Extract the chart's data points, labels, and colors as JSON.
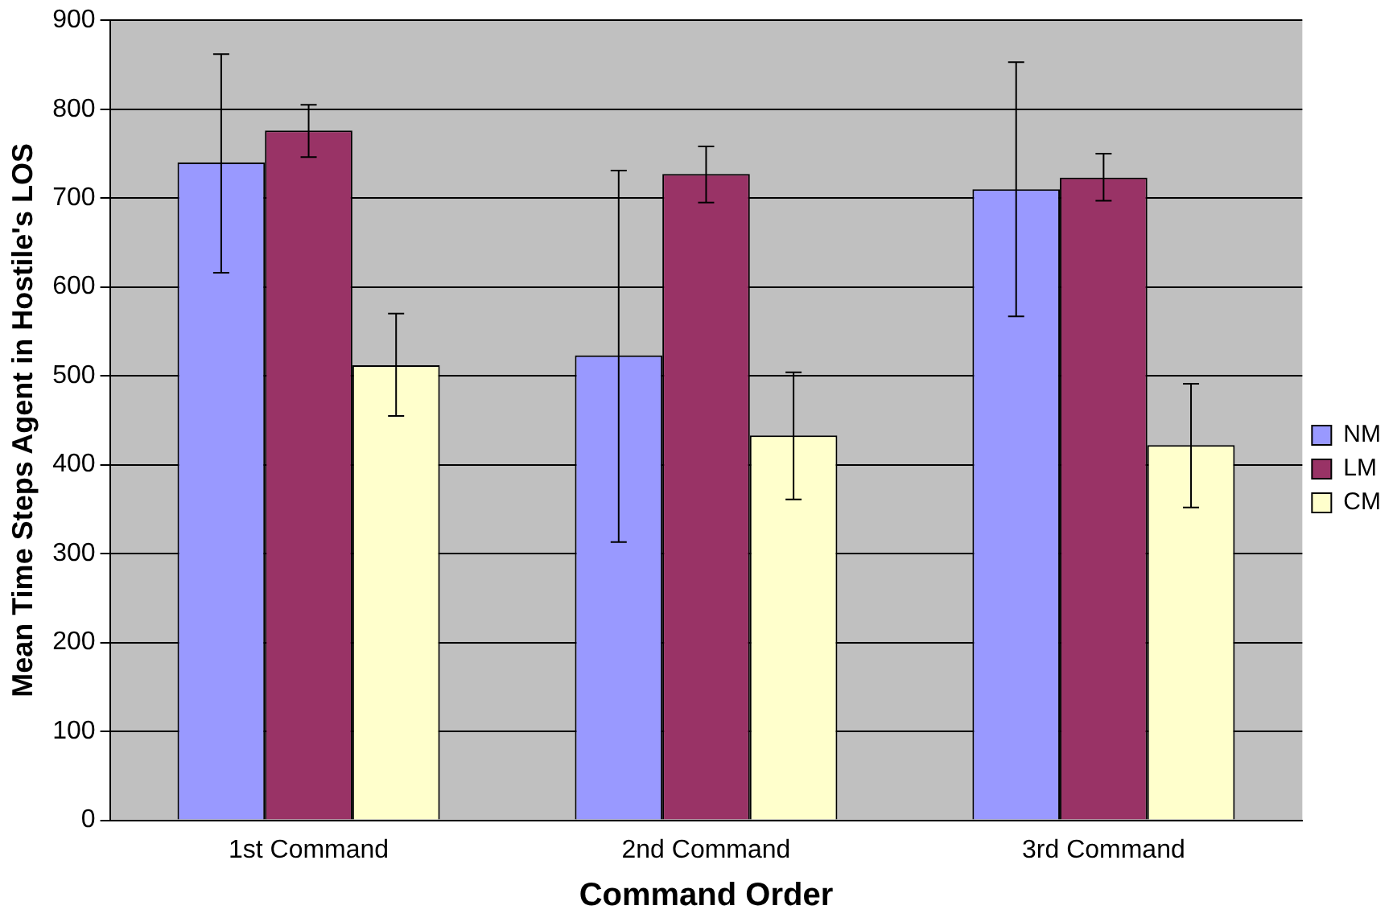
{
  "chart_data": {
    "type": "bar",
    "xlabel": "Command Order",
    "ylabel": "Mean Time Steps Agent in Hostile's LOS",
    "categories": [
      "1st Command",
      "2nd Command",
      "3rd Command"
    ],
    "series": [
      {
        "name": "NM",
        "color": "#9999ff",
        "values": [
          740,
          523,
          710
        ],
        "errors": [
          [
            616,
            862
          ],
          [
            313,
            731
          ],
          [
            567,
            853
          ]
        ]
      },
      {
        "name": "LM",
        "color": "#993366",
        "values": [
          776,
          727,
          723
        ],
        "errors": [
          [
            746,
            805
          ],
          [
            695,
            758
          ],
          [
            697,
            750
          ]
        ]
      },
      {
        "name": "CM",
        "color": "#ffffcc",
        "values": [
          512,
          433,
          422
        ],
        "errors": [
          [
            455,
            570
          ],
          [
            361,
            504
          ],
          [
            352,
            491
          ]
        ]
      }
    ],
    "ylim": [
      0,
      900
    ],
    "yticks": [
      0,
      100,
      200,
      300,
      400,
      500,
      600,
      700,
      800,
      900
    ],
    "grid": "y",
    "legend": "right"
  }
}
